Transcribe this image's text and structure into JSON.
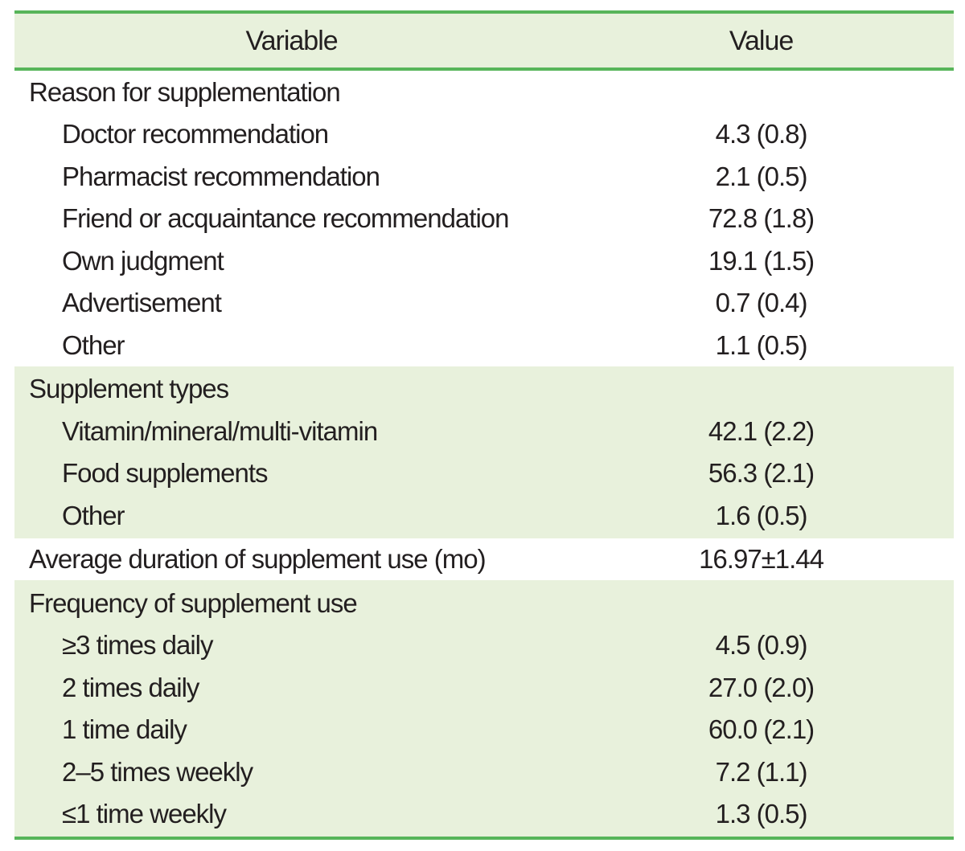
{
  "colors": {
    "band": "#e8f1dc",
    "border": "#57b55a",
    "text": "#231f20"
  },
  "table": {
    "columns": [
      "Variable",
      "Value"
    ],
    "sections": [
      {
        "header": "Reason for supplementation",
        "shaded": false,
        "rows": [
          {
            "label": "Doctor recommendation",
            "value": "4.3 (0.8)"
          },
          {
            "label": "Pharmacist recommendation",
            "value": "2.1 (0.5)"
          },
          {
            "label": "Friend or acquaintance recommendation",
            "value": "72.8 (1.8)"
          },
          {
            "label": "Own judgment",
            "value": "19.1 (1.5)"
          },
          {
            "label": "Advertisement",
            "value": "0.7 (0.4)"
          },
          {
            "label": "Other",
            "value": "1.1 (0.5)"
          }
        ]
      },
      {
        "header": "Supplement types",
        "shaded": true,
        "rows": [
          {
            "label": "Vitamin/mineral/multi-vitamin",
            "value": "42.1 (2.2)"
          },
          {
            "label": "Food supplements",
            "value": "56.3 (2.1)"
          },
          {
            "label": "Other",
            "value": "1.6 (0.5)"
          }
        ]
      },
      {
        "header": "Average duration of supplement use (mo)",
        "shaded": false,
        "header_value": "16.97±1.44",
        "rows": []
      },
      {
        "header": "Frequency of supplement use",
        "shaded": true,
        "rows": [
          {
            "label": "≥3 times daily",
            "value": "4.5 (0.9)"
          },
          {
            "label": "2 times daily",
            "value": "27.0 (2.0)"
          },
          {
            "label": "1 time daily",
            "value": "60.0 (2.1)"
          },
          {
            "label": "2–5 times weekly",
            "value": "7.2 (1.1)"
          },
          {
            "label": "≤1 time weekly",
            "value": "1.3 (0.5)"
          }
        ]
      }
    ]
  }
}
